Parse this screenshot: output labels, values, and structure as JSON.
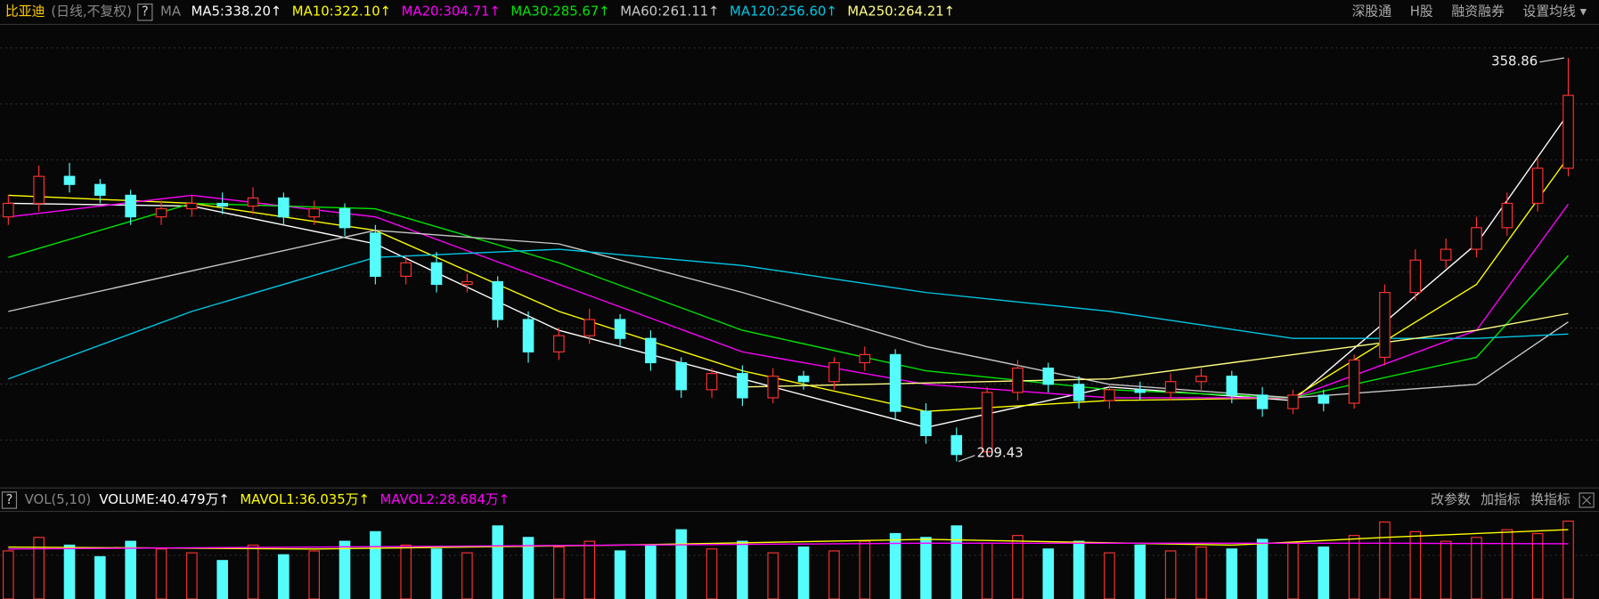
{
  "chart_data": {
    "type": "candlestick",
    "title": "比亚迪",
    "subtitle": "(日线,不复权)",
    "help": "?",
    "indicator": "MA",
    "ma_series": [
      {
        "label": "MA5:338.20↑",
        "color": "#ffffff",
        "x": [
          0,
          6,
          12,
          18,
          24,
          30,
          36,
          42,
          48,
          51
        ],
        "values": [
          305,
          304,
          290,
          258,
          240,
          222,
          237,
          232,
          290,
          338.2
        ]
      },
      {
        "label": "MA10:322.10↑",
        "color": "#ffff00",
        "x": [
          0,
          6,
          12,
          18,
          24,
          30,
          36,
          42,
          48,
          51
        ],
        "values": [
          308,
          305,
          295,
          265,
          243,
          228,
          232,
          233,
          275,
          322.1
        ]
      },
      {
        "label": "MA20:304.71↑",
        "color": "#ff00ff",
        "x": [
          0,
          6,
          12,
          18,
          24,
          30,
          36,
          42,
          48,
          51
        ],
        "values": [
          300,
          308,
          300,
          275,
          250,
          238,
          233,
          233,
          258,
          304.71
        ]
      },
      {
        "label": "MA30:285.67↑",
        "color": "#00e600",
        "x": [
          0,
          6,
          12,
          18,
          24,
          30,
          36,
          42,
          48,
          51
        ],
        "values": [
          285,
          305,
          303,
          283,
          258,
          243,
          236,
          233,
          248,
          285.67
        ]
      },
      {
        "label": "MA60:261.11↑",
        "color": "#c8c8c8",
        "x": [
          0,
          6,
          12,
          18,
          24,
          30,
          36,
          42,
          48,
          51
        ],
        "values": [
          265,
          280,
          295,
          290,
          272,
          252,
          238,
          233,
          238,
          261.11
        ]
      },
      {
        "label": "MA120:256.60↑",
        "color": "#00c8e6",
        "x": [
          0,
          6,
          12,
          18,
          24,
          30,
          36,
          42,
          48,
          51
        ],
        "values": [
          240,
          265,
          285,
          288,
          282,
          272,
          265,
          255,
          255,
          256.6
        ]
      },
      {
        "label": "MA250:264.21↑",
        "color": "#ffff80",
        "x": [
          24,
          36,
          48,
          51
        ],
        "values": [
          237,
          240,
          258,
          264.21
        ]
      }
    ],
    "toolbar": [
      "深股通",
      "H股",
      "融资融券",
      "设置均线 ▾"
    ],
    "ylim": [
      200,
      372
    ],
    "up_color": "#ff3232",
    "down_color": "#54fcfc",
    "open": [
      300,
      305,
      315,
      312,
      308,
      300,
      303,
      305,
      304,
      307,
      300,
      303,
      294,
      278,
      283,
      275,
      276,
      262,
      250,
      256,
      262,
      255,
      246,
      236,
      242,
      233,
      241,
      239,
      246,
      249,
      228,
      219,
      213,
      235,
      244,
      238,
      232,
      236,
      235,
      239,
      241,
      234,
      229,
      234,
      231,
      248,
      272,
      284,
      288,
      296,
      305,
      318
    ],
    "high": [
      308,
      319,
      320,
      314,
      310,
      306,
      308,
      309,
      311,
      309,
      306,
      305,
      297,
      286,
      287,
      279,
      278,
      265,
      259,
      266,
      264,
      258,
      248,
      244,
      245,
      244,
      243,
      248,
      252,
      251,
      231,
      222,
      237,
      247,
      246,
      241,
      238,
      239,
      242,
      244,
      243,
      237,
      236,
      236,
      249,
      275,
      288,
      292,
      300,
      309,
      322,
      358.86
    ],
    "low": [
      297,
      302,
      309,
      305,
      297,
      297,
      300,
      301,
      301,
      297,
      297,
      293,
      275,
      275,
      272,
      272,
      259,
      246,
      247,
      253,
      252,
      243,
      233,
      233,
      230,
      231,
      236,
      236,
      243,
      225,
      216,
      209.43,
      211,
      232,
      235,
      229,
      229,
      232,
      232,
      236,
      231,
      226,
      227,
      228,
      229,
      245,
      269,
      281,
      285,
      293,
      302,
      315
    ],
    "close": [
      305,
      315,
      312,
      308,
      300,
      303,
      305,
      304,
      307,
      300,
      303,
      296,
      278,
      283,
      275,
      276,
      262,
      250,
      256,
      262,
      255,
      246,
      236,
      242,
      233,
      241,
      239,
      246,
      249,
      228,
      219,
      212,
      235,
      244,
      238,
      232,
      236,
      235,
      239,
      241,
      234,
      229,
      234,
      231,
      247,
      272,
      284,
      288,
      296,
      305,
      318,
      345
    ],
    "volume": {
      "help": "?",
      "label": "VOL(5,10)",
      "volume_label": "VOLUME:40.479万↑",
      "mavol1_label": "MAVOL1:36.035万↑",
      "mavol2_label": "MAVOL2:28.684万↑",
      "mavol1_color": "#ffff00",
      "mavol2_color": "#ff00ff",
      "ylim": [
        0,
        45
      ],
      "values": [
        25,
        32,
        28,
        22,
        30,
        26,
        24,
        20,
        28,
        23,
        25,
        30,
        35,
        28,
        26,
        24,
        38,
        32,
        27,
        30,
        25,
        28,
        36,
        26,
        30,
        24,
        27,
        25,
        30,
        34,
        32,
        38,
        29,
        33,
        26,
        30,
        24,
        28,
        25,
        27,
        26,
        31,
        29,
        27,
        33,
        40,
        35,
        30,
        32,
        36,
        34,
        40.479
      ],
      "mavol1": {
        "x": [
          0,
          10,
          20,
          30,
          40,
          45,
          51
        ],
        "values": [
          27,
          26,
          28,
          31,
          28,
          32,
          36.035
        ]
      },
      "mavol2": {
        "x": [
          0,
          10,
          20,
          30,
          40,
          45,
          51
        ],
        "values": [
          26,
          27,
          28,
          29,
          29,
          29,
          28.684
        ]
      },
      "buttons": [
        "改参数",
        "加指标",
        "换指标"
      ]
    }
  }
}
